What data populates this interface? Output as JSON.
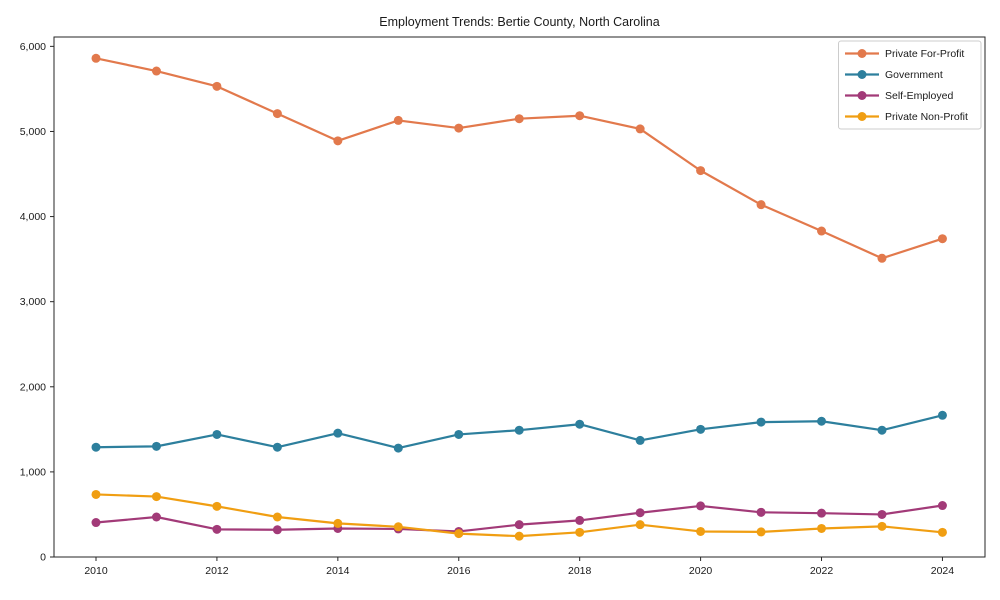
{
  "title": "Employment Trends: Bertie County, North Carolina",
  "chart_data": {
    "type": "line",
    "title": "Employment Trends: Bertie County, North Carolina",
    "xlabel": "",
    "ylabel": "",
    "x": [
      2010,
      2011,
      2012,
      2013,
      2014,
      2015,
      2016,
      2017,
      2018,
      2019,
      2020,
      2021,
      2022,
      2023,
      2024
    ],
    "xticks": [
      2010,
      2012,
      2014,
      2016,
      2018,
      2020,
      2022,
      2024
    ],
    "ylim": [
      0,
      6110
    ],
    "yticks": [
      0,
      1000,
      2000,
      3000,
      4000,
      5000,
      6000
    ],
    "ytick_labels": [
      "0",
      "1,000",
      "2,000",
      "3,000",
      "4,000",
      "5,000",
      "6,000"
    ],
    "grid": false,
    "legend_position": "upper right",
    "marker": "circle",
    "series": [
      {
        "name": "Private For-Profit",
        "color": "#e2794c",
        "values": [
          5860,
          5710,
          5530,
          5210,
          4890,
          5130,
          5040,
          5150,
          5185,
          5030,
          4540,
          4140,
          3830,
          3510,
          3740
        ]
      },
      {
        "name": "Government",
        "color": "#2d7f9d",
        "values": [
          1290,
          1300,
          1440,
          1290,
          1455,
          1280,
          1440,
          1490,
          1560,
          1370,
          1500,
          1585,
          1595,
          1490,
          1665
        ]
      },
      {
        "name": "Self-Employed",
        "color": "#a23a78",
        "values": [
          405,
          470,
          325,
          320,
          335,
          330,
          300,
          380,
          430,
          520,
          600,
          525,
          515,
          500,
          605
        ]
      },
      {
        "name": "Private Non-Profit",
        "color": "#f09e12",
        "values": [
          735,
          710,
          595,
          470,
          395,
          355,
          275,
          245,
          290,
          380,
          300,
          295,
          335,
          360,
          290
        ]
      }
    ]
  }
}
